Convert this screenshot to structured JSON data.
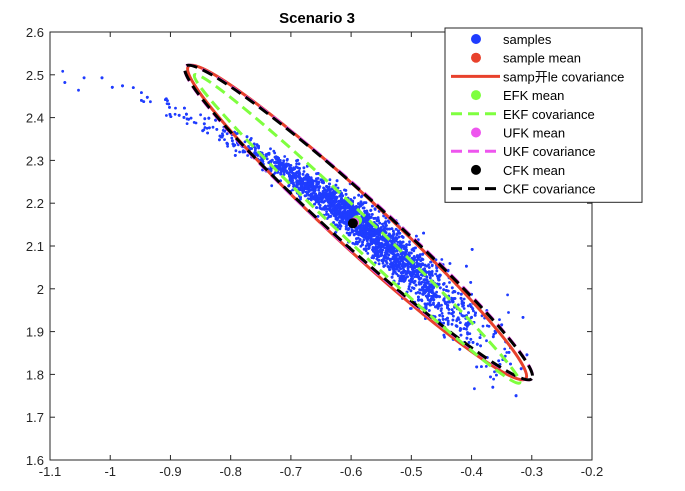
{
  "chart_data": {
    "type": "scatter",
    "title": "Scenario 3",
    "xlabel": "",
    "ylabel": "",
    "xlim": [
      -1.1,
      -0.2
    ],
    "ylim": [
      1.6,
      2.6
    ],
    "xticks": [
      "-1.1",
      "-1",
      "-0.9",
      "-0.8",
      "-0.7",
      "-0.6",
      "-0.5",
      "-0.4",
      "-0.3",
      "-0.2"
    ],
    "yticks": [
      "1.6",
      "1.7",
      "1.8",
      "1.9",
      "2",
      "2.1",
      "2.2",
      "2.3",
      "2.4",
      "2.5",
      "2.6"
    ],
    "grid": false,
    "legend_position": "top-right",
    "legend": [
      {
        "label": "samples",
        "kind": "dot",
        "color": "#1f3cff"
      },
      {
        "label": "sample mean",
        "kind": "dot",
        "color": "#e8412c"
      },
      {
        "label": "samp开le covariance",
        "kind": "line",
        "color": "#e8412c"
      },
      {
        "label": "EFK mean",
        "kind": "dot",
        "color": "#7fff3f"
      },
      {
        "label": "EKF covariance",
        "kind": "dash",
        "color": "#7fff3f"
      },
      {
        "label": "UFK mean",
        "kind": "dot",
        "color": "#ee55ee"
      },
      {
        "label": "UKF covariance",
        "kind": "dash",
        "color": "#ee55ee"
      },
      {
        "label": "CFK mean",
        "kind": "dot",
        "color": "#000000"
      },
      {
        "label": "CKF covariance",
        "kind": "dash",
        "color": "#000000"
      }
    ],
    "samples": {
      "approx_count": 10000,
      "color": "#1f3cff",
      "trend_points": [
        {
          "x": -1.07,
          "y": 2.49
        },
        {
          "x": -1.0,
          "y": 2.47
        },
        {
          "x": -0.9,
          "y": 2.42
        },
        {
          "x": -0.8,
          "y": 2.35
        },
        {
          "x": -0.7,
          "y": 2.27
        },
        {
          "x": -0.6,
          "y": 2.17
        },
        {
          "x": -0.5,
          "y": 2.05
        },
        {
          "x": -0.4,
          "y": 1.92
        },
        {
          "x": -0.3,
          "y": 1.8
        }
      ]
    },
    "means": {
      "sample": {
        "x": -0.595,
        "y": 2.155
      },
      "ekf": {
        "x": -0.59,
        "y": 2.16
      },
      "ukf": {
        "x": -0.595,
        "y": 2.155
      },
      "ckf": {
        "x": -0.597,
        "y": 2.153
      }
    },
    "covariance_ellipses": [
      {
        "name": "sample",
        "color": "#e8412c",
        "style": "solid",
        "endpoints": [
          [
            -0.87,
            2.52
          ],
          [
            -0.31,
            1.79
          ]
        ],
        "minor_halfwidth_x": 0.062
      },
      {
        "name": "ukf",
        "color": "#ee55ee",
        "style": "dashed",
        "endpoints": [
          [
            -0.875,
            2.52
          ],
          [
            -0.3,
            1.79
          ]
        ],
        "minor_halfwidth_x": 0.064
      },
      {
        "name": "ckf",
        "color": "#000000",
        "style": "dashed",
        "endpoints": [
          [
            -0.875,
            2.52
          ],
          [
            -0.3,
            1.79
          ]
        ],
        "minor_halfwidth_x": 0.062
      },
      {
        "name": "ekf",
        "color": "#7fff3f",
        "style": "dashed",
        "endpoints": [
          [
            -0.86,
            2.5
          ],
          [
            -0.32,
            1.78
          ]
        ],
        "minor_halfwidth_x": 0.035
      }
    ]
  }
}
